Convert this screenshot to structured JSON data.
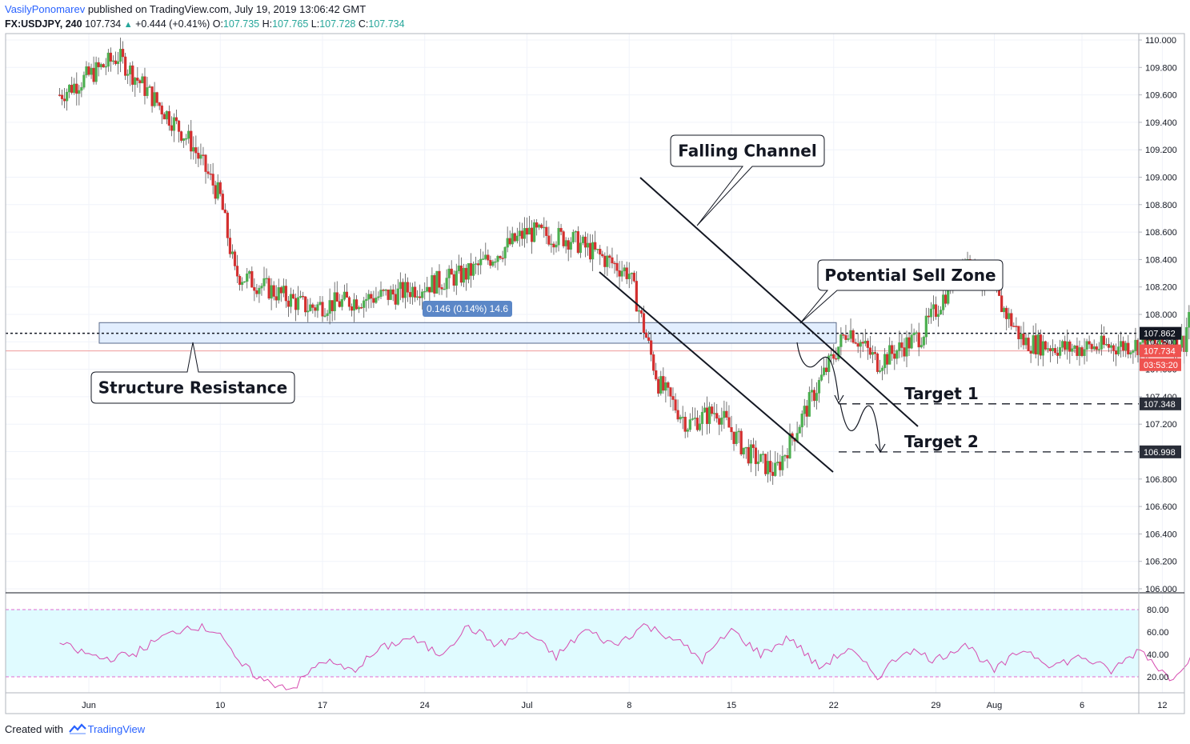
{
  "header": {
    "author": "VasilyPonomarev",
    "published_text": "published on TradingView.com, July 19, 2019 13:06:42 GMT",
    "symbol": "FX:USDJPY, 240",
    "last": "107.734",
    "change": "+0.444 (+0.41%)",
    "open_label": "O:",
    "open": "107.735",
    "high_label": "H:",
    "high": "107.765",
    "low_label": "L:",
    "low": "107.728",
    "close_label": "C:",
    "close": "107.734"
  },
  "footer": {
    "created_with": "Created with",
    "brand": "TradingView"
  },
  "colors": {
    "up": "#26a69a",
    "down": "#ef5350",
    "candle_up": "#4caf50",
    "candle_down": "#d32f2f",
    "zone_fill": "#dbeafe",
    "rsi_line": "#d64cb0",
    "rsi_band": "#e0fbff",
    "accent": "#2962ff"
  },
  "chart_data": [
    {
      "type": "candlestick",
      "symbol": "FX:USDJPY",
      "interval": "240",
      "ylim": [
        106.0,
        110.0
      ],
      "y_ticks": [
        "110.000",
        "109.800",
        "109.600",
        "109.400",
        "109.200",
        "109.000",
        "108.800",
        "108.600",
        "108.400",
        "108.200",
        "108.000",
        "107.800",
        "107.600",
        "107.400",
        "107.200",
        "107.000",
        "106.800",
        "106.600",
        "106.400",
        "106.200",
        "106.000"
      ],
      "x_tick_labels": [
        "Jun",
        "10",
        "17",
        "24",
        "Jul",
        "8",
        "15",
        "22",
        "29",
        "Aug",
        "6",
        "12"
      ],
      "price_labels": [
        {
          "value": 107.862,
          "text": "107.862",
          "style": "black"
        },
        {
          "value": 107.734,
          "text": "107.734",
          "style": "red"
        },
        {
          "value": 107.634,
          "text": "03:53:20",
          "style": "red"
        },
        {
          "value": 107.348,
          "text": "107.348",
          "style": "dark"
        },
        {
          "value": 106.998,
          "text": "106.998",
          "style": "dark"
        }
      ],
      "horizontal_lines": [
        {
          "name": "dotted-level",
          "value": 107.862
        },
        {
          "name": "last-price",
          "value": 107.734
        }
      ],
      "zone": {
        "from": 107.79,
        "to": 107.94,
        "label": "Structure Resistance",
        "measure_label": "0.146 (0.14%) 14.6"
      },
      "annotations": [
        "Falling Channel",
        "Potential Sell Zone",
        "Target 1",
        "Target 2"
      ],
      "targets": [
        {
          "label": "Target 1",
          "value": 107.348
        },
        {
          "label": "Target 2",
          "value": 106.998
        }
      ],
      "anchors": [
        [
          29,
          109.6
        ],
        [
          33,
          109.88
        ],
        [
          38,
          109.25
        ],
        [
          40,
          108.85
        ],
        [
          41,
          108.3
        ],
        [
          46,
          108.05
        ],
        [
          52,
          108.15
        ],
        [
          57,
          108.3
        ],
        [
          61,
          108.6
        ],
        [
          64,
          108.55
        ],
        [
          68,
          108.3
        ],
        [
          70,
          107.5
        ],
        [
          72,
          107.2
        ],
        [
          74,
          107.3
        ],
        [
          76,
          107.0
        ],
        [
          78,
          106.85
        ],
        [
          81,
          107.5
        ],
        [
          83,
          107.9
        ],
        [
          85,
          107.65
        ],
        [
          88,
          107.85
        ],
        [
          91,
          108.4
        ],
        [
          93,
          108.15
        ],
        [
          95,
          107.8
        ],
        [
          98,
          107.75
        ],
        [
          106,
          107.8
        ],
        [
          107,
          108.45
        ],
        [
          110,
          108.8
        ],
        [
          112,
          108.95
        ],
        [
          115,
          108.9
        ],
        [
          118,
          108.4
        ],
        [
          121,
          108.1
        ],
        [
          124,
          108.45
        ],
        [
          127,
          107.85
        ],
        [
          130,
          107.95
        ],
        [
          133,
          108.25
        ],
        [
          135,
          108.3
        ],
        [
          137,
          107.9
        ],
        [
          140,
          107.9
        ],
        [
          142,
          107.28
        ],
        [
          145,
          107.62
        ],
        [
          146.2,
          107.73
        ]
      ]
    },
    {
      "type": "line",
      "name": "RSI",
      "ylim": [
        0,
        100
      ],
      "y_ticks": [
        "80.00",
        "60.00",
        "40.00",
        "20.00"
      ],
      "band": [
        20,
        80
      ],
      "anchors": [
        [
          29,
          50
        ],
        [
          30,
          44
        ],
        [
          32,
          36
        ],
        [
          34,
          40
        ],
        [
          36,
          55
        ],
        [
          38,
          66
        ],
        [
          40,
          60
        ],
        [
          41,
          35
        ],
        [
          43,
          16
        ],
        [
          45,
          10
        ],
        [
          47,
          35
        ],
        [
          49,
          25
        ],
        [
          51,
          45
        ],
        [
          53,
          55
        ],
        [
          55,
          40
        ],
        [
          57,
          65
        ],
        [
          59,
          48
        ],
        [
          61,
          60
        ],
        [
          63,
          38
        ],
        [
          65,
          62
        ],
        [
          67,
          48
        ],
        [
          69,
          66
        ],
        [
          71,
          55
        ],
        [
          73,
          35
        ],
        [
          75,
          62
        ],
        [
          77,
          40
        ],
        [
          79,
          55
        ],
        [
          81,
          28
        ],
        [
          83,
          45
        ],
        [
          85,
          20
        ],
        [
          87,
          45
        ],
        [
          89,
          35
        ],
        [
          91,
          50
        ],
        [
          93,
          25
        ],
        [
          95,
          45
        ],
        [
          97,
          30
        ],
        [
          99,
          38
        ],
        [
          101,
          25
        ],
        [
          103,
          45
        ],
        [
          105,
          18
        ],
        [
          107,
          45
        ],
        [
          109,
          60
        ],
        [
          111,
          75
        ],
        [
          113,
          82
        ],
        [
          115,
          70
        ],
        [
          117,
          55
        ],
        [
          119,
          62
        ],
        [
          121,
          45
        ],
        [
          123,
          30
        ],
        [
          125,
          55
        ],
        [
          127,
          28
        ],
        [
          129,
          50
        ],
        [
          131,
          40
        ],
        [
          133,
          60
        ],
        [
          135,
          62
        ],
        [
          137,
          65
        ],
        [
          139,
          45
        ],
        [
          141,
          25
        ],
        [
          142,
          22
        ],
        [
          144,
          42
        ],
        [
          146,
          50
        ]
      ]
    }
  ]
}
